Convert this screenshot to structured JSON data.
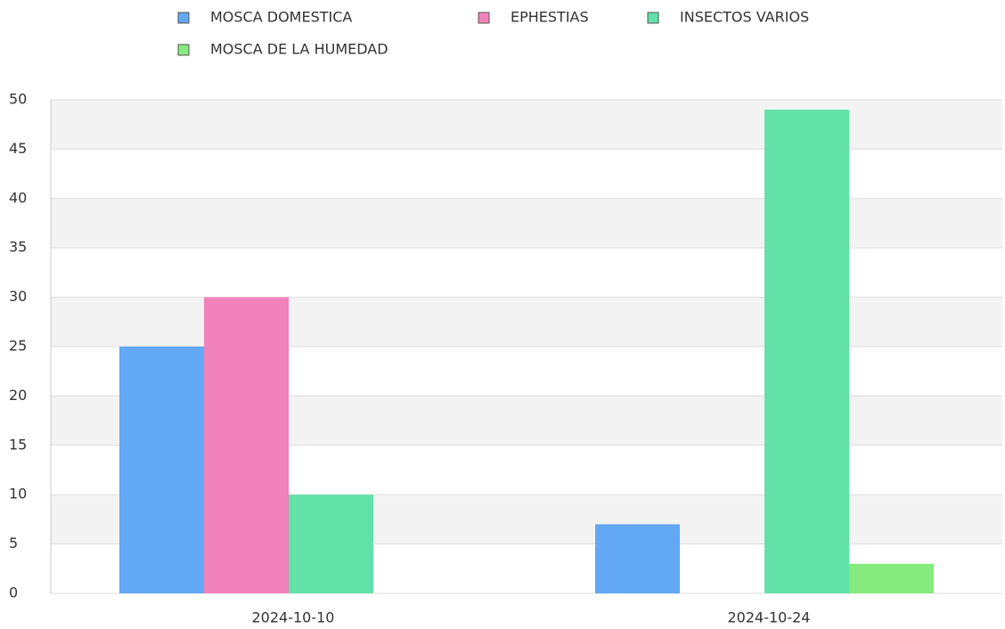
{
  "chart_data": {
    "type": "bar",
    "categories": [
      "2024-10-10",
      "2024-10-24"
    ],
    "series": [
      {
        "name": "MOSCA DOMESTICA",
        "color": "#63a8f4",
        "values": [
          25,
          7
        ]
      },
      {
        "name": "EPHESTIAS",
        "color": "#f282bb",
        "values": [
          30,
          0
        ]
      },
      {
        "name": "INSECTOS VARIOS",
        "color": "#62e2a8",
        "values": [
          10,
          49
        ]
      },
      {
        "name": "MOSCA DE LA HUMEDAD",
        "color": "#86ea7f",
        "values": [
          0,
          3
        ]
      }
    ],
    "ylim": [
      0,
      50
    ],
    "yticks": [
      0,
      5,
      10,
      15,
      20,
      25,
      30,
      35,
      40,
      45,
      50
    ],
    "grid": true,
    "legend": "top"
  }
}
